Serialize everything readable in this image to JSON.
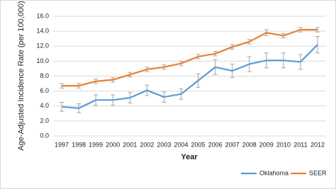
{
  "chart_data": {
    "type": "line",
    "y_label": "Age-Adjusted Incidence Rate (per 100,000)",
    "x_label": "Year",
    "categories": [
      "1997",
      "1998",
      "1999",
      "2000",
      "2001",
      "2002",
      "2003",
      "2004",
      "2005",
      "2006",
      "2007",
      "2008",
      "2009",
      "2010",
      "2011",
      "2012"
    ],
    "series": [
      {
        "name": "Oklahoma",
        "color": "#5b9bd5",
        "values": [
          3.9,
          3.7,
          4.8,
          4.8,
          5.1,
          6.1,
          5.2,
          5.6,
          7.4,
          9.2,
          8.7,
          9.6,
          10.1,
          10.1,
          9.9,
          12.2
        ],
        "errors": [
          0.6,
          0.6,
          0.7,
          0.7,
          0.7,
          0.7,
          0.7,
          0.7,
          0.9,
          1.0,
          0.9,
          1.0,
          1.0,
          1.0,
          1.0,
          1.1
        ]
      },
      {
        "name": "SEER",
        "color": "#ed7d31",
        "values": [
          6.7,
          6.7,
          7.3,
          7.5,
          8.2,
          8.9,
          9.2,
          9.7,
          10.6,
          11.0,
          11.9,
          12.6,
          13.8,
          13.4,
          14.2,
          14.2
        ],
        "errors": [
          0.3,
          0.3,
          0.3,
          0.3,
          0.3,
          0.3,
          0.3,
          0.3,
          0.3,
          0.3,
          0.3,
          0.3,
          0.4,
          0.3,
          0.3,
          0.3
        ]
      }
    ],
    "ylim": [
      0,
      16
    ],
    "yticks": [
      {
        "value": 0,
        "label": "0.0"
      },
      {
        "value": 2,
        "label": "2.0"
      },
      {
        "value": 4,
        "label": "4.0"
      },
      {
        "value": 6,
        "label": "6.0"
      },
      {
        "value": 8,
        "label": "8.0"
      },
      {
        "value": 10,
        "label": "10.0"
      },
      {
        "value": 12,
        "label": "12.0"
      },
      {
        "value": 14,
        "label": "14.0"
      },
      {
        "value": 16,
        "label": "16.0"
      }
    ],
    "grid": true,
    "error_color": "#a5a5a5",
    "legend": "bottom-right"
  }
}
